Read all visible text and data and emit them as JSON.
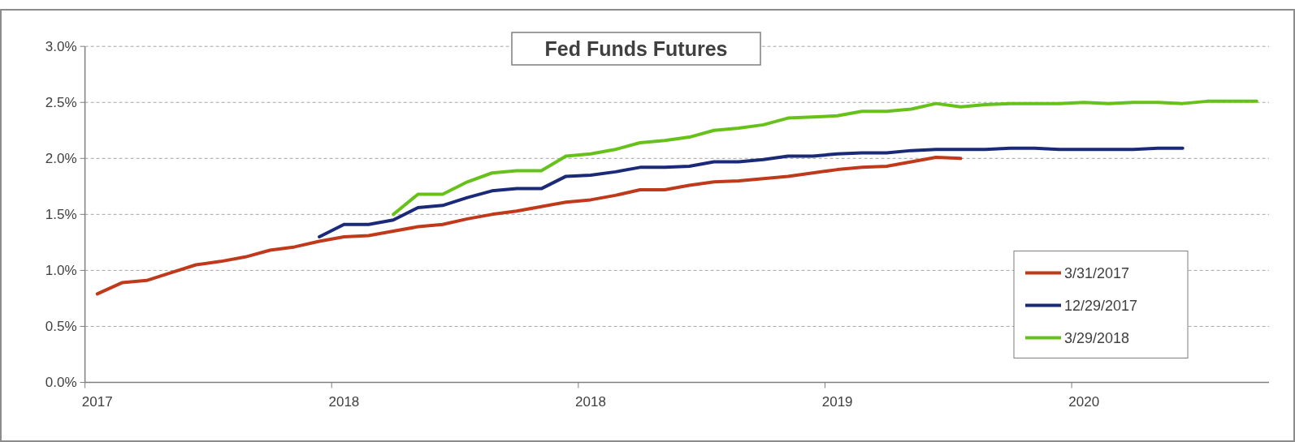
{
  "chart_data": {
    "type": "line",
    "title": "Fed Funds Futures",
    "categories": [
      "2017",
      null,
      null,
      null,
      null,
      null,
      null,
      null,
      null,
      null,
      "2018",
      null,
      null,
      null,
      null,
      null,
      null,
      null,
      null,
      null,
      "2018",
      null,
      null,
      null,
      null,
      null,
      null,
      null,
      null,
      null,
      "2019",
      null,
      null,
      null,
      null,
      null,
      null,
      null,
      null,
      null,
      "2020",
      null,
      null,
      null,
      null,
      null,
      null,
      null
    ],
    "series": [
      {
        "name": "3/31/2017",
        "color": "#c0391b",
        "values": [
          0.79,
          0.89,
          0.91,
          0.98,
          1.05,
          1.08,
          1.12,
          1.18,
          1.21,
          1.26,
          1.3,
          1.31,
          1.35,
          1.39,
          1.41,
          1.46,
          1.5,
          1.53,
          1.57,
          1.61,
          1.63,
          1.67,
          1.72,
          1.72,
          1.76,
          1.79,
          1.8,
          1.82,
          1.84,
          1.87,
          1.9,
          1.92,
          1.93,
          1.97,
          2.01,
          2.0,
          null,
          null,
          null,
          null,
          null,
          null,
          null,
          null,
          null,
          null,
          null,
          null
        ]
      },
      {
        "name": "12/29/2017",
        "color": "#1a2a78",
        "values": [
          null,
          null,
          null,
          null,
          null,
          null,
          null,
          null,
          null,
          1.3,
          1.41,
          1.41,
          1.45,
          1.56,
          1.58,
          1.65,
          1.71,
          1.73,
          1.73,
          1.84,
          1.85,
          1.88,
          1.92,
          1.92,
          1.93,
          1.97,
          1.97,
          1.99,
          2.02,
          2.02,
          2.04,
          2.05,
          2.05,
          2.07,
          2.08,
          2.08,
          2.08,
          2.09,
          2.09,
          2.08,
          2.08,
          2.08,
          2.08,
          2.09,
          2.09,
          null,
          null,
          null
        ]
      },
      {
        "name": "3/29/2018",
        "color": "#66c21a",
        "values": [
          null,
          null,
          null,
          null,
          null,
          null,
          null,
          null,
          null,
          null,
          null,
          null,
          1.5,
          1.68,
          1.68,
          1.79,
          1.87,
          1.89,
          1.89,
          2.02,
          2.04,
          2.08,
          2.14,
          2.16,
          2.19,
          2.25,
          2.27,
          2.3,
          2.36,
          2.37,
          2.38,
          2.42,
          2.42,
          2.44,
          2.49,
          2.46,
          2.48,
          2.49,
          2.49,
          2.49,
          2.5,
          2.49,
          2.5,
          2.5,
          2.49,
          2.51,
          2.51,
          2.51
        ]
      }
    ],
    "ylim": [
      0,
      3
    ],
    "yticks": [
      {
        "value": 0,
        "label": "0.0%"
      },
      {
        "value": 0.5,
        "label": "0.5%"
      },
      {
        "value": 1,
        "label": "1.0%"
      },
      {
        "value": 1.5,
        "label": "1.5%"
      },
      {
        "value": 2,
        "label": "2.0%"
      },
      {
        "value": 2.5,
        "label": "2.5%"
      },
      {
        "value": 3,
        "label": "3.0%"
      }
    ],
    "grid": "y",
    "legend": "bottom right",
    "line_style": "solid",
    "marker": "none"
  }
}
